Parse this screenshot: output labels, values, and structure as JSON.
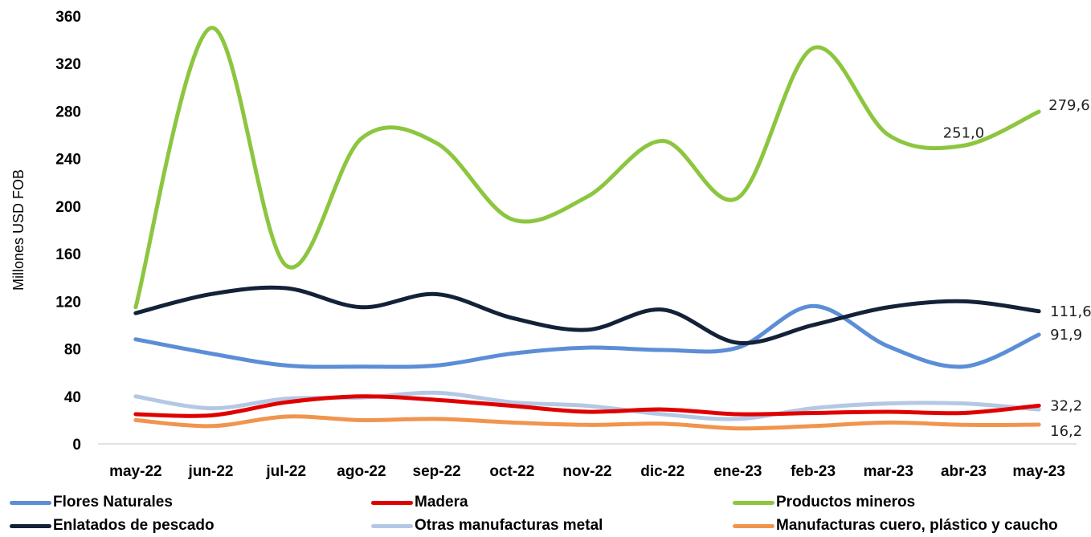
{
  "chart_data": {
    "type": "line",
    "ylabel": "Millones USD FOB",
    "ylim": [
      0,
      360
    ],
    "yticks": [
      "0",
      "40",
      "80",
      "120",
      "160",
      "200",
      "240",
      "280",
      "320",
      "360"
    ],
    "categories": [
      "may-22",
      "jun-22",
      "jul-22",
      "ago-22",
      "sep-22",
      "oct-22",
      "nov-22",
      "dic-22",
      "ene-23",
      "feb-23",
      "mar-23",
      "abr-23",
      "may-23"
    ],
    "grid": false,
    "legend_position": "bottom",
    "series": [
      {
        "name": "Flores Naturales",
        "color": "#5B8ED6",
        "values": [
          88,
          76,
          66,
          65,
          66,
          76,
          81,
          79,
          81,
          116,
          82,
          65,
          91.9
        ]
      },
      {
        "name": "Madera",
        "color": "#E00000",
        "values": [
          25,
          24,
          35,
          40,
          37,
          32,
          27,
          29,
          25,
          26,
          27,
          26,
          32.2
        ]
      },
      {
        "name": "Productos mineros",
        "color": "#8CC63F",
        "values": [
          115,
          350,
          150,
          257,
          253,
          189,
          208,
          255,
          207,
          333,
          260,
          251.0,
          279.6
        ]
      },
      {
        "name": "Enlatados de pescado",
        "color": "#132238",
        "values": [
          110,
          126,
          131,
          115,
          126,
          106,
          96,
          113,
          85,
          100,
          115,
          120,
          111.6
        ]
      },
      {
        "name": "Otras manufacturas metal",
        "color": "#B4C8E4",
        "values": [
          40,
          30,
          38,
          39,
          43,
          35,
          32,
          25,
          21,
          30,
          34,
          34,
          29
        ]
      },
      {
        "name": "Manufacturas cuero, plástico y caucho",
        "color": "#F0954E",
        "values": [
          20,
          15,
          23,
          20,
          21,
          18,
          16,
          17,
          13,
          15,
          18,
          16,
          16.2
        ]
      }
    ],
    "data_labels": [
      {
        "series": 2,
        "index": 11,
        "text": "251,0"
      },
      {
        "series": 2,
        "index": 12,
        "text": "279,6"
      },
      {
        "series": 3,
        "index": 12,
        "text": "111,6"
      },
      {
        "series": 0,
        "index": 12,
        "text": "91,9"
      },
      {
        "series": 1,
        "index": 12,
        "text": "32,2"
      },
      {
        "series": 5,
        "index": 12,
        "text": "16,2"
      }
    ]
  }
}
